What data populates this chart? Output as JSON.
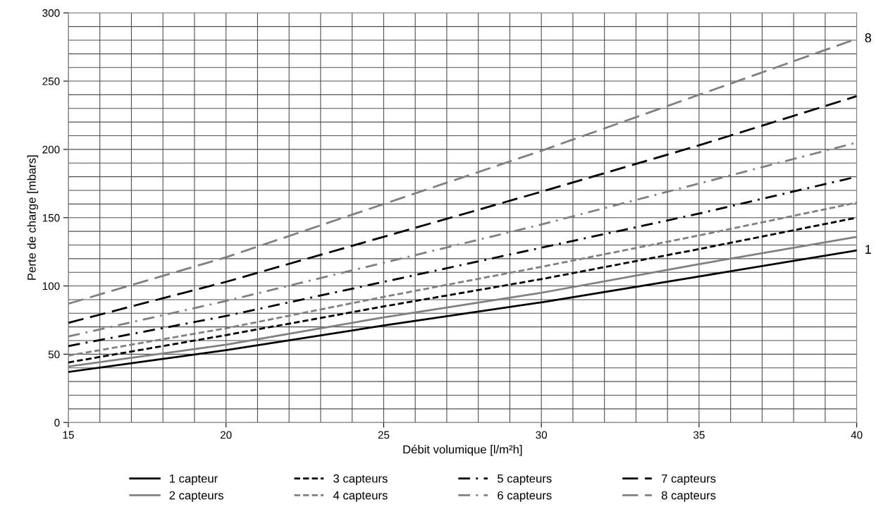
{
  "chart_data": {
    "type": "line",
    "xlabel": "Débit volumique [l/m²h]",
    "ylabel": "Perte de charge [mbars]",
    "x": [
      15,
      20,
      25,
      30,
      35,
      40
    ],
    "xlim": [
      15,
      40
    ],
    "xticks": [
      15,
      20,
      25,
      30,
      35,
      40
    ],
    "ylim": [
      0,
      300
    ],
    "yticks": [
      0,
      50,
      100,
      150,
      200,
      250,
      300
    ],
    "grid": true,
    "legend": "bottom",
    "marker": "none",
    "series": [
      {
        "name": "1 capteur",
        "color": "#000000",
        "line_style": "solid",
        "values": [
          37,
          53,
          71,
          88,
          107,
          126
        ]
      },
      {
        "name": "2 capteurs",
        "color": "#808080",
        "line_style": "solid",
        "values": [
          41,
          57,
          77,
          95,
          116,
          136
        ]
      },
      {
        "name": "3 capteurs",
        "color": "#000000",
        "line_style": "dashed",
        "values": [
          44,
          64,
          85,
          105,
          127,
          150
        ]
      },
      {
        "name": "4 capteurs",
        "color": "#808080",
        "line_style": "dashed",
        "values": [
          49,
          69,
          92,
          114,
          137,
          161
        ]
      },
      {
        "name": "5 capteurs",
        "color": "#000000",
        "line_style": "dashdot",
        "values": [
          56,
          78,
          103,
          128,
          153,
          180
        ]
      },
      {
        "name": "6 capteurs",
        "color": "#808080",
        "line_style": "dashdot",
        "values": [
          63,
          89,
          117,
          145,
          175,
          205
        ]
      },
      {
        "name": "7 capteurs",
        "color": "#000000",
        "line_style": "longdash",
        "values": [
          73,
          103,
          136,
          169,
          203,
          239
        ]
      },
      {
        "name": "8 capteurs",
        "color": "#808080",
        "line_style": "longdash",
        "values": [
          87,
          121,
          160,
          199,
          240,
          281
        ]
      }
    ],
    "annotations": [
      {
        "text": "8",
        "x": 40,
        "y": 281
      },
      {
        "text": "1",
        "x": 40,
        "y": 126
      }
    ]
  }
}
